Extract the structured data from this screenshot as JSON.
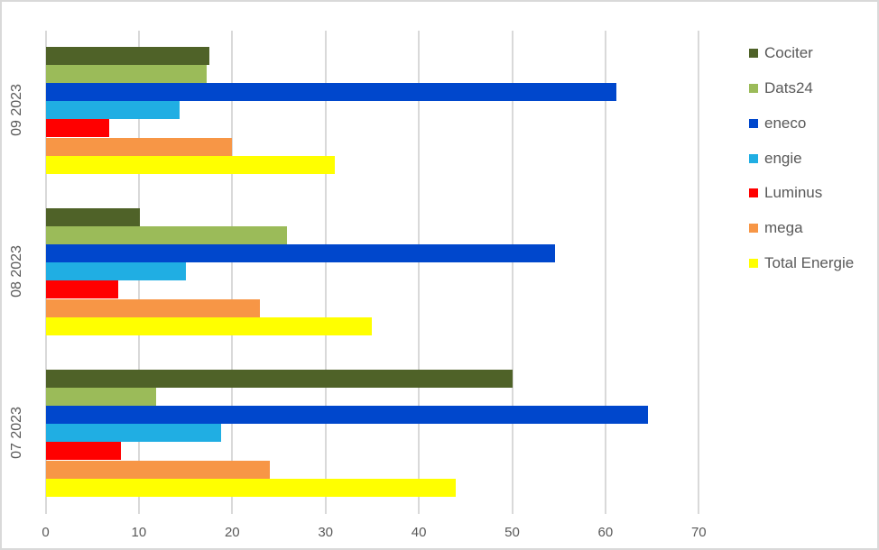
{
  "chart_data": {
    "type": "bar",
    "orientation": "horizontal",
    "title": "",
    "xlabel": "",
    "ylabel": "",
    "xlim": [
      0,
      70
    ],
    "xticks": [
      0,
      10,
      20,
      30,
      40,
      50,
      60,
      70
    ],
    "grid": true,
    "legend_position": "right",
    "categories": [
      "07 2023",
      "08 2023",
      "09 2023"
    ],
    "series": [
      {
        "name": "Cociter",
        "color": "#4f6228",
        "values": [
          50.0,
          10.1,
          17.6
        ]
      },
      {
        "name": "Dats24",
        "color": "#9bbb59",
        "values": [
          11.8,
          25.9,
          17.3
        ]
      },
      {
        "name": "eneco",
        "color": "#0047cc",
        "values": [
          64.6,
          54.6,
          61.2
        ]
      },
      {
        "name": "engie",
        "color": "#20aee3",
        "values": [
          18.8,
          15.0,
          14.4
        ]
      },
      {
        "name": "Luminus",
        "color": "#ff0000",
        "values": [
          8.1,
          7.8,
          6.8
        ]
      },
      {
        "name": "mega",
        "color": "#f79646",
        "values": [
          24.0,
          23.0,
          20.0
        ]
      },
      {
        "name": "Total Energie",
        "color": "#ffff00",
        "values": [
          44.0,
          35.0,
          31.0
        ]
      }
    ]
  },
  "axis": {
    "x_ticks": [
      "0",
      "10",
      "20",
      "30",
      "40",
      "50",
      "60",
      "70"
    ]
  },
  "categories_labels": [
    "09 2023",
    "08 2023",
    "07 2023"
  ],
  "legend": [
    "Cociter",
    "Dats24",
    "eneco",
    "engie",
    "Luminus",
    "mega",
    "Total Energie"
  ]
}
